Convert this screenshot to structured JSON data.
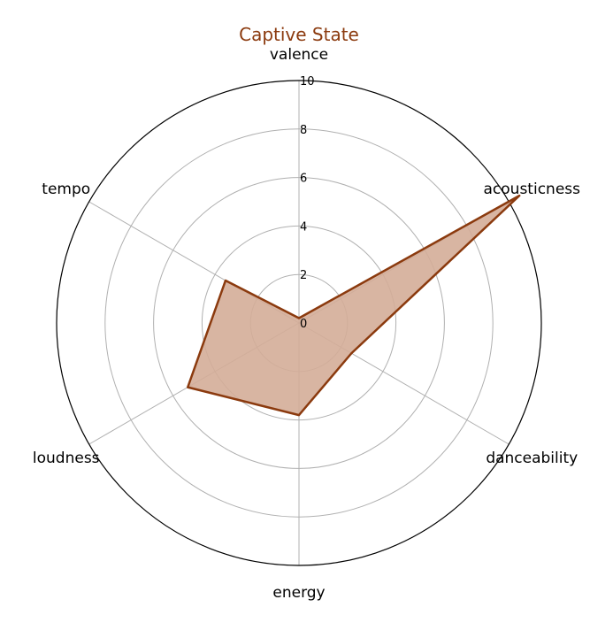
{
  "chart_data": {
    "type": "radar",
    "title": "Captive State",
    "categories": [
      "valence",
      "acousticness",
      "danceability",
      "energy",
      "loudness",
      "tempo"
    ],
    "series": [
      {
        "values": [
          0.2,
          10.5,
          2.5,
          3.8,
          5.3,
          3.5
        ]
      }
    ],
    "rticks": [
      0,
      2,
      4,
      6,
      8,
      10
    ],
    "rlim": [
      0,
      10
    ],
    "grid": true,
    "colors": {
      "line": "#8b3a0e",
      "fill": "#d4ad98",
      "grid": "#b0b0b0",
      "outer": "#000000",
      "title": "#8b3a0e"
    }
  }
}
